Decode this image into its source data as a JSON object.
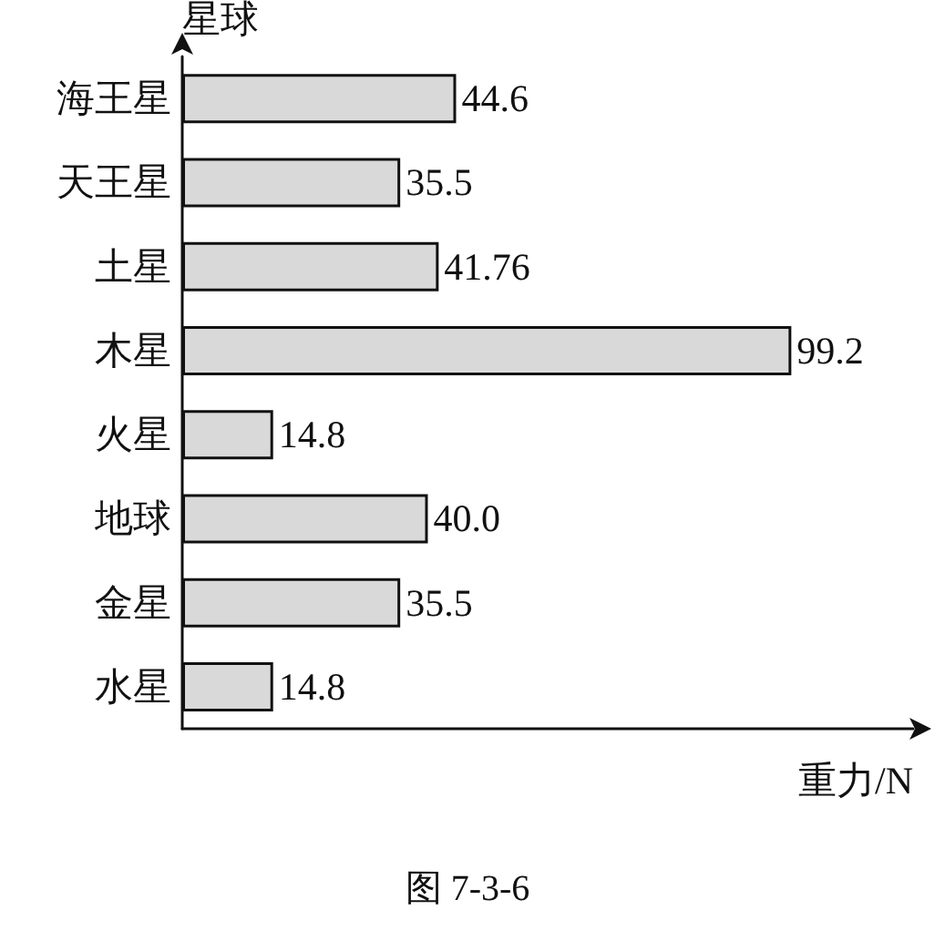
{
  "chart_data": {
    "type": "bar",
    "orientation": "horizontal",
    "categories": [
      "海王星",
      "天王星",
      "土星",
      "木星",
      "火星",
      "地球",
      "金星",
      "水星"
    ],
    "values": [
      44.6,
      35.5,
      41.76,
      99.2,
      14.8,
      40.0,
      35.5,
      14.8
    ],
    "value_labels": [
      "44.6",
      "35.5",
      "41.76",
      "99.2",
      "14.8",
      "40.0",
      "35.5",
      "14.8"
    ],
    "color": "#d9d9d9",
    "xlabel": "重力/N",
    "ylabel": "星球",
    "tick_labels": "y",
    "grid": false,
    "annotations": [
      "图 7-3-6"
    ]
  }
}
